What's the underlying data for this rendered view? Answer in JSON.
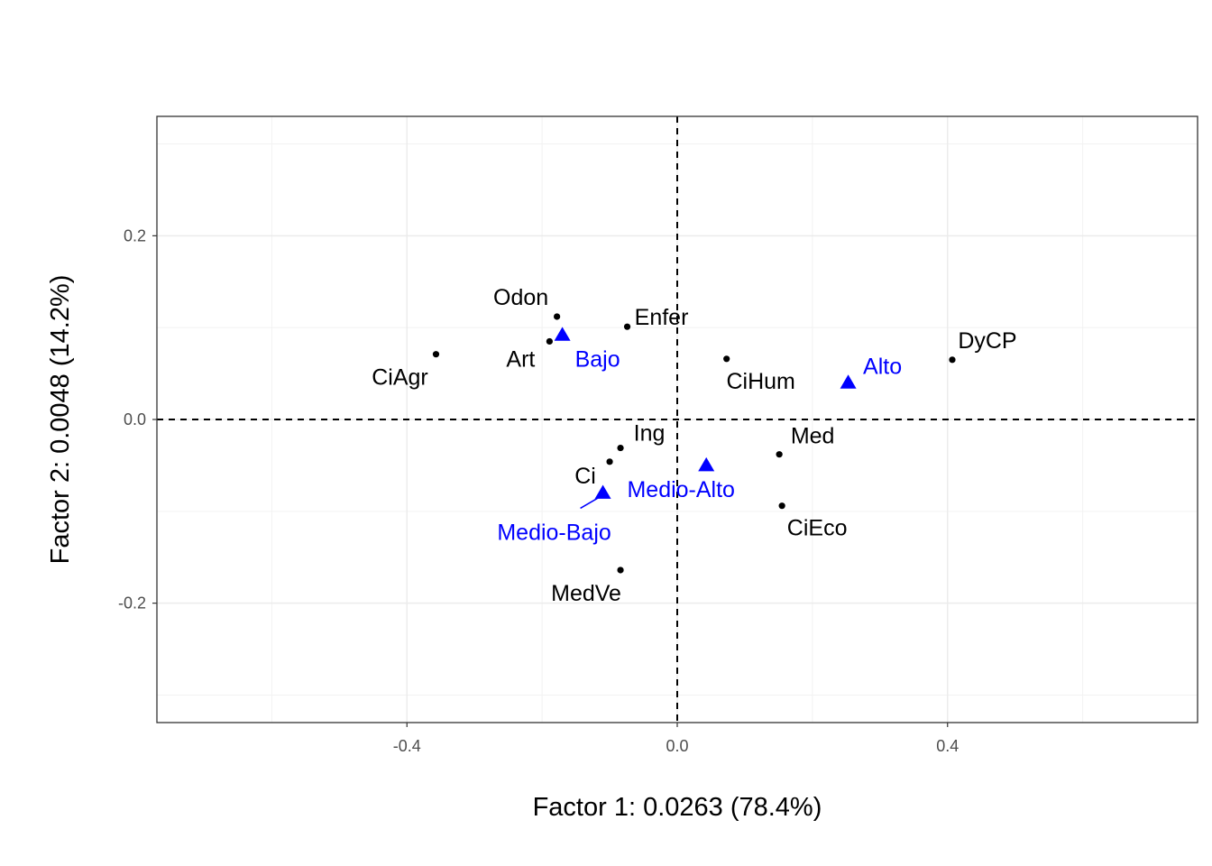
{
  "chart_data": {
    "type": "scatter",
    "title": "",
    "xlabel": "Factor 1: 0.0263 (78.4%)",
    "ylabel": "Factor 2: 0.0048 (14.2%)",
    "xlim": [
      -0.77,
      0.77
    ],
    "ylim": [
      -0.33,
      0.33
    ],
    "x_ticks": [
      -0.4,
      0.0,
      0.4
    ],
    "x_tick_labels": [
      "-0.4",
      "0.0",
      "0.4"
    ],
    "y_ticks": [
      -0.2,
      0.0,
      0.2
    ],
    "y_tick_labels": [
      "-0.2",
      "0.0",
      "0.2"
    ],
    "grid": true,
    "reference_lines": {
      "x": 0,
      "y": 0,
      "style": "dashed"
    },
    "series": [
      {
        "marker": "circle",
        "color": "#000000",
        "points": [
          {
            "label": "Odon",
            "x": -0.178,
            "y": 0.112
          },
          {
            "label": "Enfer",
            "x": -0.074,
            "y": 0.101
          },
          {
            "label": "Art",
            "x": -0.189,
            "y": 0.085
          },
          {
            "label": "CiAgr",
            "x": -0.357,
            "y": 0.071
          },
          {
            "label": "CiHum",
            "x": 0.073,
            "y": 0.066
          },
          {
            "label": "DyCP",
            "x": 0.407,
            "y": 0.065
          },
          {
            "label": "Ing",
            "x": -0.084,
            "y": -0.031
          },
          {
            "label": "Med",
            "x": 0.151,
            "y": -0.038
          },
          {
            "label": "Ci",
            "x": -0.1,
            "y": -0.046
          },
          {
            "label": "CiEco",
            "x": 0.155,
            "y": -0.094
          },
          {
            "label": "MedVe",
            "x": -0.084,
            "y": -0.164
          }
        ]
      },
      {
        "marker": "triangle",
        "color": "#0000ff",
        "points": [
          {
            "label": "Bajo",
            "x": -0.17,
            "y": 0.092
          },
          {
            "label": "Alto",
            "x": 0.253,
            "y": 0.04
          },
          {
            "label": "Medio-Alto",
            "x": 0.043,
            "y": -0.05
          },
          {
            "label": "Medio-Bajo",
            "x": -0.11,
            "y": -0.08
          }
        ]
      }
    ]
  }
}
